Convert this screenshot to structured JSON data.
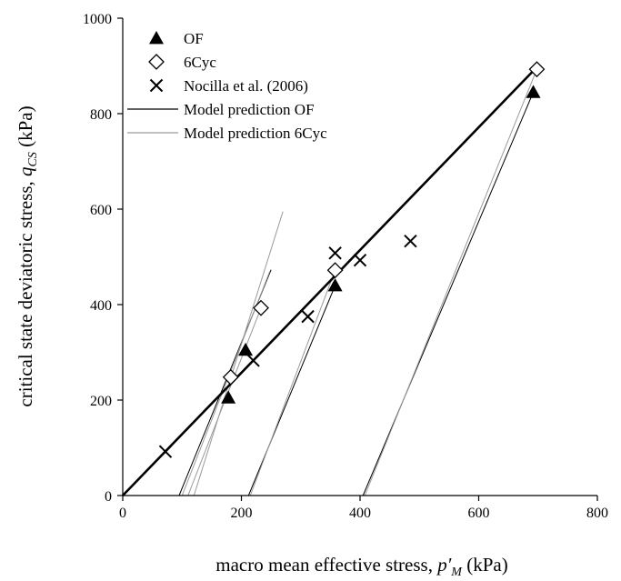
{
  "chart_data": {
    "type": "scatter",
    "title": "",
    "xlabel": {
      "main": "macro mean effective stress, ",
      "symbol": "p′",
      "subscript": "M",
      "unit": " (kPa)"
    },
    "ylabel": {
      "main": "critical state deviatoric stress, ",
      "symbol": "q",
      "subscript": "CS",
      "unit": " (kPa)"
    },
    "xlim": [
      0,
      800
    ],
    "ylim": [
      0,
      1000
    ],
    "xticks": [
      0,
      200,
      400,
      600,
      800
    ],
    "yticks": [
      0,
      200,
      400,
      600,
      800,
      1000
    ],
    "grid": false,
    "legend_position": "top-left",
    "markers": [
      {
        "name": "OF",
        "marker": "filled-triangle",
        "points": [
          [
            178,
            205
          ],
          [
            207,
            305
          ],
          [
            358,
            440
          ],
          [
            692,
            845
          ]
        ]
      },
      {
        "name": "6Cyc",
        "marker": "open-diamond",
        "points": [
          [
            182,
            248
          ],
          [
            233,
            393
          ],
          [
            358,
            472
          ],
          [
            698,
            893
          ]
        ]
      },
      {
        "name": "Nocilla et al. (2006)",
        "marker": "cross",
        "points": [
          [
            72,
            92
          ],
          [
            220,
            283
          ],
          [
            312,
            375
          ],
          [
            358,
            508
          ],
          [
            400,
            493
          ],
          [
            485,
            533
          ]
        ]
      }
    ],
    "lines": [
      {
        "name": "Model prediction OF",
        "color": "#000000",
        "segments": [
          [
            [
              95,
              0
            ],
            [
              250,
              473
            ]
          ],
          [
            [
              212,
              0
            ],
            [
              358,
              440
            ]
          ],
          [
            [
              405,
              0
            ],
            [
              692,
              845
            ]
          ]
        ]
      },
      {
        "name": "Model prediction 6Cyc",
        "color": "#9a9a9a",
        "segments": [
          [
            [
              110,
              0
            ],
            [
              233,
              393
            ]
          ],
          [
            [
              100,
              0
            ],
            [
              248,
              470
            ]
          ],
          [
            [
              120,
              0
            ],
            [
              270,
              595
            ]
          ],
          [
            [
              215,
              0
            ],
            [
              358,
              472
            ]
          ],
          [
            [
              408,
              0
            ],
            [
              698,
              893
            ]
          ]
        ]
      },
      {
        "name": "critical state line",
        "legend": false,
        "color": "#000000",
        "width": 2.6,
        "segments": [
          [
            [
              0,
              0
            ],
            [
              700,
              900
            ]
          ]
        ]
      }
    ]
  }
}
